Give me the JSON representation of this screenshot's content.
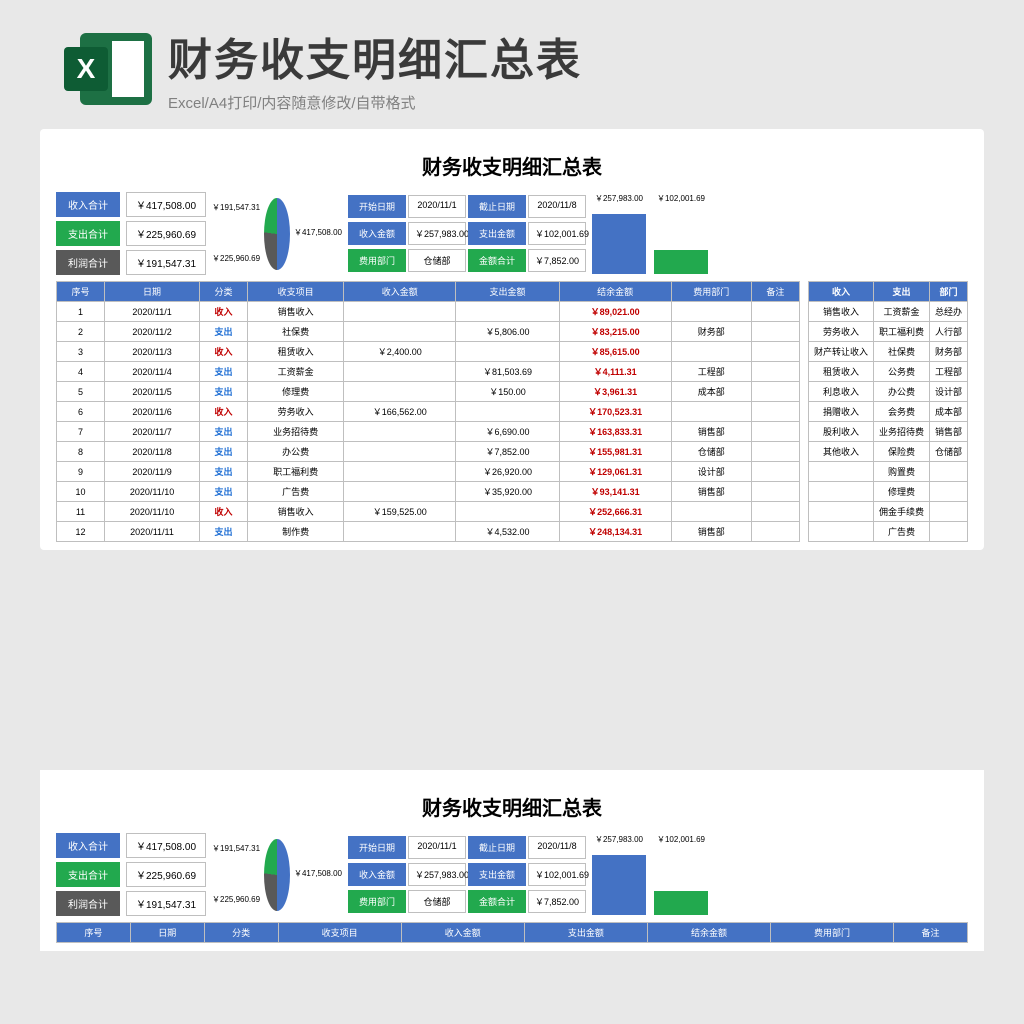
{
  "header": {
    "title": "财务收支明细汇总表",
    "subtitle": "Excel/A4打印/内容随意修改/自带格式"
  },
  "doc": {
    "title": "财务收支明细汇总表",
    "summaries": {
      "income_label": "收入合计",
      "income_value": "￥417,508.00",
      "expense_label": "支出合计",
      "expense_value": "￥225,960.69",
      "profit_label": "利润合计",
      "profit_value": "￥191,547.31"
    },
    "pie": {
      "slices": [
        {
          "value": 417508.0,
          "color": "#4472c4",
          "label": "￥417,508.00"
        },
        {
          "value": 225960.69,
          "color": "#595959",
          "label": "￥225,960.69"
        },
        {
          "value": 191547.31,
          "color": "#22a94e",
          "label": "￥191,547.31"
        }
      ],
      "bg": "#ffffff"
    },
    "dates": {
      "start_label": "开始日期",
      "start_value": "2020/11/1",
      "end_label": "截止日期",
      "end_value": "2020/11/8",
      "inc_label": "收入金额",
      "inc_value": "￥257,983.00",
      "exp_label": "支出金额",
      "exp_value": "￥102,001.69",
      "dept_label": "费用部门",
      "dept_value": "仓储部",
      "amt_label": "金额合计",
      "amt_value": "￥7,852.00"
    },
    "bar": {
      "values": [
        257983.0,
        102001.69
      ],
      "colors": [
        "#4472c4",
        "#22a94e"
      ],
      "labels": [
        "￥257,983.00",
        "￥102,001.69"
      ],
      "max": 257983.0
    },
    "columns": [
      "序号",
      "日期",
      "分类",
      "收支项目",
      "收入金额",
      "支出金额",
      "结余金额",
      "费用部门",
      "备注"
    ],
    "rows": [
      [
        "1",
        "2020/11/1",
        "收入",
        "销售收入",
        "",
        "",
        "￥89,021.00",
        "",
        ""
      ],
      [
        "2",
        "2020/11/2",
        "支出",
        "社保费",
        "",
        "￥5,806.00",
        "￥83,215.00",
        "财务部",
        ""
      ],
      [
        "3",
        "2020/11/3",
        "收入",
        "租赁收入",
        "￥2,400.00",
        "",
        "￥85,615.00",
        "",
        ""
      ],
      [
        "4",
        "2020/11/4",
        "支出",
        "工资薪金",
        "",
        "￥81,503.69",
        "￥4,111.31",
        "工程部",
        ""
      ],
      [
        "5",
        "2020/11/5",
        "支出",
        "修理费",
        "",
        "￥150.00",
        "￥3,961.31",
        "成本部",
        ""
      ],
      [
        "6",
        "2020/11/6",
        "收入",
        "劳务收入",
        "￥166,562.00",
        "",
        "￥170,523.31",
        "",
        ""
      ],
      [
        "7",
        "2020/11/7",
        "支出",
        "业务招待费",
        "",
        "￥6,690.00",
        "￥163,833.31",
        "销售部",
        ""
      ],
      [
        "8",
        "2020/11/8",
        "支出",
        "办公费",
        "",
        "￥7,852.00",
        "￥155,981.31",
        "仓储部",
        ""
      ],
      [
        "9",
        "2020/11/9",
        "支出",
        "职工福利费",
        "",
        "￥26,920.00",
        "￥129,061.31",
        "设计部",
        ""
      ],
      [
        "10",
        "2020/11/10",
        "支出",
        "广告费",
        "",
        "￥35,920.00",
        "￥93,141.31",
        "销售部",
        ""
      ],
      [
        "11",
        "2020/11/10",
        "收入",
        "销售收入",
        "￥159,525.00",
        "",
        "￥252,666.31",
        "",
        ""
      ],
      [
        "12",
        "2020/11/11",
        "支出",
        "制作费",
        "",
        "￥4,532.00",
        "￥248,134.31",
        "销售部",
        ""
      ]
    ],
    "side": {
      "headers": [
        "收入",
        "支出",
        "部门"
      ],
      "rows": [
        [
          "销售收入",
          "工资薪金",
          "总经办"
        ],
        [
          "劳务收入",
          "职工福利费",
          "人行部"
        ],
        [
          "财产转让收入",
          "社保费",
          "财务部"
        ],
        [
          "租赁收入",
          "公务费",
          "工程部"
        ],
        [
          "利息收入",
          "办公费",
          "设计部"
        ],
        [
          "捐赠收入",
          "会务费",
          "成本部"
        ],
        [
          "股利收入",
          "业务招待费",
          "销售部"
        ],
        [
          "其他收入",
          "保险费",
          "仓储部"
        ],
        [
          "",
          "购置费",
          ""
        ],
        [
          "",
          "修理费",
          ""
        ],
        [
          "",
          "佣金手续费",
          ""
        ],
        [
          "",
          "广告费",
          ""
        ]
      ]
    }
  }
}
